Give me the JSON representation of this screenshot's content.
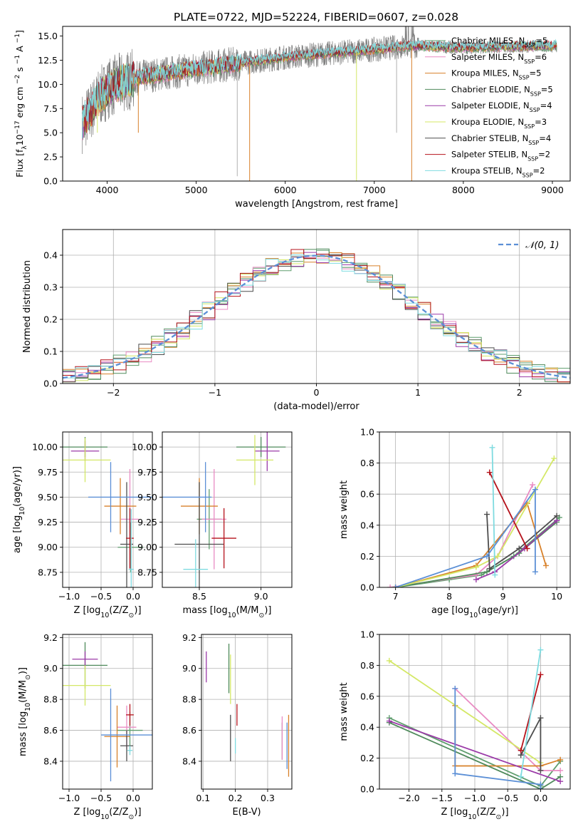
{
  "figure_title": "PLATE=0722, MJD=52224, FIBERID=0607, z=0.028",
  "colors": {
    "grid": "#b0b0b0",
    "ref_curve": "#5b8fd6"
  },
  "series": [
    {
      "legend": "Chabrier MILES, N",
      "n": "=5",
      "color": "#5f9e6e"
    },
    {
      "legend": "Salpeter MILES, N",
      "n": "=6",
      "color": "#e98bc3"
    },
    {
      "legend": "Kroupa MILES, N",
      "n": "=5",
      "color": "#d8812a"
    },
    {
      "legend": "Chabrier ELODIE, N",
      "n": "=5",
      "color": "#4f8a5b"
    },
    {
      "legend": "Salpeter ELODIE, N",
      "n": "=4",
      "color": "#9b3aa8"
    },
    {
      "legend": "Kroupa ELODIE, N",
      "n": "=3",
      "color": "#d4e866"
    },
    {
      "legend": "Chabrier STELIB, N",
      "n": "=4",
      "color": "#4d4d4d"
    },
    {
      "legend": "Salpeter STELIB, N",
      "n": "=2",
      "color": "#b5121b"
    },
    {
      "legend": "Kroupa STELIB, N",
      "n": "=2",
      "color": "#7fdbe0"
    }
  ],
  "legend_sub": "SSP",
  "chart_data": [
    {
      "id": "spectrum",
      "type": "line",
      "xlabel": "wavelength [Angstrom, rest frame]",
      "ylabel_main": "Flux [f",
      "ylabel_sub": "λ",
      "ylabel_tail": "10",
      "ylabel_exp": "−17",
      "ylabel_units": "erg cm",
      "ylabel_units2": "s",
      "ylabel_units3": "A",
      "xlim": [
        3500,
        9200
      ],
      "ylim": [
        0,
        16
      ],
      "xticks": [
        4000,
        5000,
        6000,
        7000,
        8000,
        9000
      ],
      "yticks": [
        0.0,
        2.5,
        5.0,
        7.5,
        10.0,
        12.5,
        15.0
      ],
      "xtick_labels": [
        "4000",
        "5000",
        "6000",
        "7000",
        "8000",
        "9000"
      ],
      "ytick_labels": [
        "0.0",
        "2.5",
        "5.0",
        "7.5",
        "10.0",
        "12.5",
        "15.0"
      ],
      "continuum": [
        [
          3720,
          6.0
        ],
        [
          3800,
          7.0
        ],
        [
          3900,
          8.5
        ],
        [
          4000,
          9.5
        ],
        [
          4100,
          10.0
        ],
        [
          4200,
          10.3
        ],
        [
          4400,
          10.8
        ],
        [
          4700,
          11.2
        ],
        [
          5000,
          11.6
        ],
        [
          5500,
          12.2
        ],
        [
          6000,
          12.8
        ],
        [
          6500,
          13.2
        ],
        [
          7000,
          13.6
        ],
        [
          7400,
          14.0
        ],
        [
          8000,
          13.8
        ],
        [
          8500,
          13.9
        ],
        [
          9000,
          14.0
        ],
        [
          9050,
          14.0
        ]
      ]
    },
    {
      "id": "residuals",
      "type": "histogram",
      "xlabel": "(data-model)/error",
      "ylabel": "Normed distribution",
      "xlim": [
        -2.5,
        2.5
      ],
      "ylim": [
        0,
        0.48
      ],
      "xticks": [
        -2,
        -1,
        0,
        1,
        2
      ],
      "yticks": [
        0.0,
        0.1,
        0.2,
        0.3,
        0.4
      ],
      "xtick_labels": [
        "−2",
        "−1",
        "0",
        "1",
        "2"
      ],
      "ytick_labels": [
        "0.0",
        "0.1",
        "0.2",
        "0.3",
        "0.4"
      ],
      "bin_width": 0.125,
      "legend_label": "𝒩(0, 1)"
    },
    {
      "id": "age-vs-z",
      "type": "scatter",
      "xlabel": "Z [log",
      "xlabel_sub": "10",
      "xlabel_tail": "(Z/Z",
      "xlabel_tail_sub": "⊙",
      "xlabel_end": ")]",
      "ylabel": "age  [log",
      "ylabel_sub": "10",
      "ylabel_tail": "(age/yr)]",
      "xlim": [
        -1.1,
        0.3
      ],
      "ylim": [
        8.6,
        10.15
      ],
      "xticks": [
        -1.0,
        -0.5,
        0.0
      ],
      "yticks": [
        8.75,
        9.0,
        9.25,
        9.5,
        9.75,
        10.0
      ],
      "xtick_labels": [
        "−1.0",
        "−0.5",
        "0.0"
      ],
      "ytick_labels": [
        "8.75",
        "9.00",
        "9.25",
        "9.50",
        "9.75",
        "10.00"
      ],
      "points": [
        {
          "s": 0,
          "x": -0.04,
          "y": 9.0,
          "xe": 0.2,
          "ye": 0.25
        },
        {
          "s": 1,
          "x": -0.05,
          "y": 9.28,
          "xe": 0.14,
          "ye": 0.5
        },
        {
          "s": 2,
          "x": -0.2,
          "y": 9.41,
          "xe": 0.25,
          "ye": 0.28
        },
        {
          "s": 3,
          "x": -0.75,
          "y": 10.0,
          "xe": 0.35,
          "ye": 0.1
        },
        {
          "s": 4,
          "x": -0.75,
          "y": 9.96,
          "xe": 0.22,
          "ye": 0.1
        },
        {
          "s": 5,
          "x": -0.75,
          "y": 9.87,
          "xe": 0.4,
          "ye": 0.22
        },
        {
          "s": 6,
          "x": -0.1,
          "y": 9.03,
          "xe": 0.1,
          "ye": 0.62
        },
        {
          "s": 7,
          "x": -0.05,
          "y": 9.09,
          "xe": 0.06,
          "ye": 0.3
        },
        {
          "s": 8,
          "x": -0.03,
          "y": 8.78,
          "xe": 0.04,
          "ye": 0.6
        },
        {
          "s": "blue",
          "x": -0.2,
          "y": 9.5,
          "xe": 0.5,
          "ye": 0.0
        },
        {
          "s": "blue",
          "x": -0.35,
          "y": 9.5,
          "xe": 0.0,
          "ye": 0.35
        }
      ]
    },
    {
      "id": "age-vs-mass",
      "type": "scatter",
      "xlabel": "mass [log",
      "xlabel_sub": "10",
      "xlabel_tail": "(M/M",
      "xlabel_tail_sub": "⊙",
      "xlabel_end": ")]",
      "xlim": [
        8.2,
        9.25
      ],
      "ylim": [
        8.6,
        10.15
      ],
      "xticks": [
        8.5,
        9.0
      ],
      "yticks": [
        8.75,
        9.0,
        9.25,
        9.5,
        9.75,
        10.0
      ],
      "xtick_labels": [
        "8.5",
        "9.0"
      ],
      "ytick_labels": [
        "8.75",
        "9.00",
        "9.25",
        "9.50",
        "9.75",
        "10.00"
      ],
      "points": [
        {
          "s": 0,
          "x": 8.58,
          "y": 9.28,
          "xe": 0.1,
          "ye": 0.3
        },
        {
          "s": 1,
          "x": 8.62,
          "y": 9.28,
          "xe": 0.1,
          "ye": 0.5
        },
        {
          "s": 2,
          "x": 8.5,
          "y": 9.41,
          "xe": 0.15,
          "ye": 0.28
        },
        {
          "s": 3,
          "x": 9.0,
          "y": 10.0,
          "xe": 0.2,
          "ye": 0.1
        },
        {
          "s": 4,
          "x": 9.05,
          "y": 9.96,
          "xe": 0.1,
          "ye": 0.2
        },
        {
          "s": 5,
          "x": 8.95,
          "y": 9.87,
          "xe": 0.15,
          "ye": 0.25
        },
        {
          "s": 6,
          "x": 8.5,
          "y": 9.03,
          "xe": 0.2,
          "ye": 0.62
        },
        {
          "s": 7,
          "x": 8.7,
          "y": 9.09,
          "xe": 0.1,
          "ye": 0.3
        },
        {
          "s": 8,
          "x": 8.47,
          "y": 8.78,
          "xe": 0.1,
          "ye": 0.3
        },
        {
          "s": "blue",
          "x": 8.4,
          "y": 9.5,
          "xe": 0.2,
          "ye": 0.0
        },
        {
          "s": "blue",
          "x": 8.55,
          "y": 9.5,
          "xe": 0.0,
          "ye": 0.35
        }
      ]
    },
    {
      "id": "weight-vs-age",
      "type": "line",
      "xlabel": "age  [log",
      "xlabel_sub": "10",
      "xlabel_tail": "(age/yr)]",
      "ylabel": "mass weight",
      "xlim": [
        6.7,
        10.25
      ],
      "ylim": [
        0,
        1
      ],
      "xticks": [
        7,
        8,
        9,
        10
      ],
      "yticks": [
        0.0,
        0.2,
        0.4,
        0.6,
        0.8,
        1.0
      ],
      "xtick_labels": [
        "7",
        "8",
        "9",
        "10"
      ],
      "ytick_labels": [
        "0.0",
        "0.2",
        "0.4",
        "0.6",
        "0.8",
        "1.0"
      ],
      "lines": [
        {
          "s": 0,
          "x": [
            7.0,
            8.0,
            8.6,
            9.2,
            10.05
          ],
          "y": [
            0.0,
            0.05,
            0.08,
            0.2,
            0.45
          ]
        },
        {
          "s": 1,
          "x": [
            6.9,
            8.5,
            8.9,
            9.55
          ],
          "y": [
            0.0,
            0.08,
            0.2,
            0.66
          ]
        },
        {
          "s": 2,
          "x": [
            7.0,
            8.5,
            9.45,
            9.8
          ],
          "y": [
            0.0,
            0.14,
            0.54,
            0.14
          ]
        },
        {
          "s": 3,
          "x": [
            7.0,
            8.7,
            9.3,
            10.0
          ],
          "y": [
            0.0,
            0.1,
            0.22,
            0.42
          ]
        },
        {
          "s": 4,
          "x": [
            8.5,
            8.85,
            9.4,
            10.0
          ],
          "y": [
            0.05,
            0.1,
            0.25,
            0.43
          ]
        },
        {
          "s": 5,
          "x": [
            7.0,
            8.5,
            8.9,
            9.95
          ],
          "y": [
            0.0,
            0.13,
            0.2,
            0.83
          ]
        },
        {
          "s": 6,
          "x": [
            8.7,
            8.75,
            9.3,
            10.0
          ],
          "y": [
            0.47,
            0.12,
            0.25,
            0.46
          ]
        },
        {
          "s": 7,
          "x": [
            8.75,
            9.45
          ],
          "y": [
            0.74,
            0.25
          ]
        },
        {
          "s": 8,
          "x": [
            8.8,
            8.85
          ],
          "y": [
            0.9,
            0.08
          ]
        },
        {
          "s": "blue",
          "x": [
            7.0,
            8.7,
            9.6,
            9.6
          ],
          "y": [
            0.0,
            0.2,
            0.63,
            0.1
          ]
        }
      ]
    },
    {
      "id": "mass-vs-z",
      "type": "scatter",
      "xlabel": "Z [log",
      "xlabel_sub": "10",
      "xlabel_tail": "(Z/Z",
      "xlabel_tail_sub": "⊙",
      "xlabel_end": ")]",
      "ylabel": "mass [log",
      "ylabel_sub": "10",
      "ylabel_tail": "(M/M",
      "ylabel_tail_sub": "⊙",
      "ylabel_end": ")]",
      "xlim": [
        -1.1,
        0.3
      ],
      "ylim": [
        8.22,
        9.22
      ],
      "xticks": [
        -1.0,
        -0.5,
        0.0
      ],
      "yticks": [
        8.4,
        8.6,
        8.8,
        9.0,
        9.2
      ],
      "xtick_labels": [
        "−1.0",
        "−0.5",
        "0.0"
      ],
      "ytick_labels": [
        "8.4",
        "8.6",
        "8.8",
        "9.0",
        "9.2"
      ],
      "points": [
        {
          "s": 0,
          "x": -0.05,
          "y": 8.6,
          "xe": 0.2,
          "ye": 0.12
        },
        {
          "s": 1,
          "x": -0.1,
          "y": 8.62,
          "xe": 0.15,
          "ye": 0.14
        },
        {
          "s": 2,
          "x": -0.25,
          "y": 8.56,
          "xe": 0.2,
          "ye": 0.2
        },
        {
          "s": 3,
          "x": -0.75,
          "y": 9.02,
          "xe": 0.35,
          "ye": 0.15
        },
        {
          "s": 4,
          "x": -0.75,
          "y": 9.06,
          "xe": 0.2,
          "ye": 0.05
        },
        {
          "s": 5,
          "x": -0.75,
          "y": 8.89,
          "xe": 0.4,
          "ye": 0.13
        },
        {
          "s": 6,
          "x": -0.1,
          "y": 8.5,
          "xe": 0.1,
          "ye": 0.1
        },
        {
          "s": 7,
          "x": -0.05,
          "y": 8.7,
          "xe": 0.06,
          "ye": 0.07
        },
        {
          "s": 8,
          "x": -0.05,
          "y": 8.47,
          "xe": 0.04,
          "ye": 0.03
        },
        {
          "s": "blue",
          "x": -0.1,
          "y": 8.57,
          "xe": 0.4,
          "ye": 0.0
        },
        {
          "s": "blue",
          "x": -0.35,
          "y": 8.57,
          "xe": 0.0,
          "ye": 0.3
        }
      ]
    },
    {
      "id": "mass-vs-ebv",
      "type": "scatter",
      "xlabel": "E(B-V)",
      "xlim": [
        0.095,
        0.375
      ],
      "ylim": [
        8.22,
        9.22
      ],
      "xticks": [
        0.1,
        0.2,
        0.3
      ],
      "yticks": [
        8.4,
        8.6,
        8.8,
        9.0,
        9.2
      ],
      "xtick_labels": [
        "0.1",
        "0.2",
        "0.3"
      ],
      "ytick_labels": [
        "8.4",
        "8.6",
        "8.8",
        "9.0",
        "9.2"
      ],
      "points": [
        {
          "s": 0,
          "x": 0.345,
          "y": 8.53,
          "xe": 0.0,
          "ye": 0.12
        },
        {
          "s": 1,
          "x": 0.345,
          "y": 8.55,
          "xe": 0.0,
          "ye": 0.14
        },
        {
          "s": 2,
          "x": 0.365,
          "y": 8.5,
          "xe": 0.0,
          "ye": 0.2
        },
        {
          "s": 3,
          "x": 0.18,
          "y": 9.0,
          "xe": 0.0,
          "ye": 0.16
        },
        {
          "s": 4,
          "x": 0.11,
          "y": 9.01,
          "xe": 0.0,
          "ye": 0.1
        },
        {
          "s": 5,
          "x": 0.185,
          "y": 8.93,
          "xe": 0.0,
          "ye": 0.16
        },
        {
          "s": 6,
          "x": 0.185,
          "y": 8.55,
          "xe": 0.0,
          "ye": 0.15
        },
        {
          "s": 7,
          "x": 0.205,
          "y": 8.7,
          "xe": 0.0,
          "ye": 0.07
        },
        {
          "s": 8,
          "x": 0.2,
          "y": 8.5,
          "xe": 0.0,
          "ye": 0.05
        },
        {
          "s": "blue",
          "x": 0.36,
          "y": 8.5,
          "xe": 0.0,
          "ye": 0.15
        }
      ]
    },
    {
      "id": "weight-vs-z",
      "type": "line",
      "xlabel": "Z [log",
      "xlabel_sub": "10",
      "xlabel_tail": "(Z/Z",
      "xlabel_tail_sub": "⊙",
      "xlabel_end": ")]",
      "ylabel": "mass weight",
      "xlim": [
        -2.45,
        0.45
      ],
      "ylim": [
        0,
        1
      ],
      "xticks": [
        -2.0,
        -1.5,
        -1.0,
        -0.5,
        0.0
      ],
      "yticks": [
        0.0,
        0.2,
        0.4,
        0.6,
        0.8,
        1.0
      ],
      "xtick_labels": [
        "−2.0",
        "−1.5",
        "−1.0",
        "−0.5",
        "0.0"
      ],
      "ytick_labels": [
        "0.0",
        "0.2",
        "0.4",
        "0.6",
        "0.8",
        "1.0"
      ],
      "lines": [
        {
          "s": 0,
          "x": [
            -2.3,
            0.0,
            0.3
          ],
          "y": [
            0.46,
            0.02,
            0.18
          ]
        },
        {
          "s": 1,
          "x": [
            -1.3,
            0.0,
            0.3
          ],
          "y": [
            0.65,
            0.12,
            0.12
          ]
        },
        {
          "s": 2,
          "x": [
            -1.3,
            -1.3,
            0.0,
            0.3
          ],
          "y": [
            0.54,
            0.15,
            0.15,
            0.19
          ]
        },
        {
          "s": 3,
          "x": [
            -2.3,
            0.0,
            0.3
          ],
          "y": [
            0.43,
            0.0,
            0.08
          ]
        },
        {
          "s": 4,
          "x": [
            -2.3,
            0.3
          ],
          "y": [
            0.44,
            0.05
          ]
        },
        {
          "s": 5,
          "x": [
            -2.3,
            0.0
          ],
          "y": [
            0.83,
            0.17
          ]
        },
        {
          "s": 6,
          "x": [
            -0.3,
            0.0,
            0.0
          ],
          "y": [
            0.22,
            0.46,
            0.12
          ]
        },
        {
          "s": 7,
          "x": [
            -0.3,
            0.0
          ],
          "y": [
            0.25,
            0.74
          ]
        },
        {
          "s": 8,
          "x": [
            -0.3,
            0.0
          ],
          "y": [
            0.08,
            0.9
          ]
        },
        {
          "s": "blue",
          "x": [
            -1.3,
            -1.3,
            0.0,
            0.0
          ],
          "y": [
            0.65,
            0.1,
            0.03,
            0.0
          ]
        }
      ]
    }
  ]
}
